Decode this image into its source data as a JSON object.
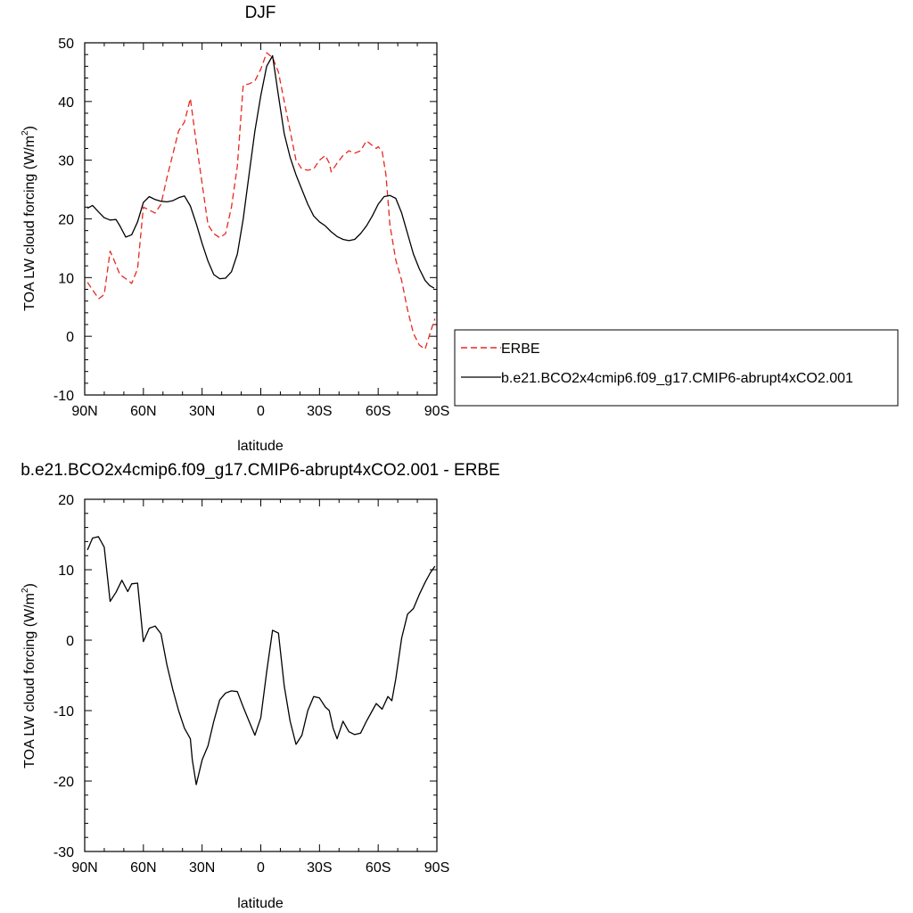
{
  "chart_data": [
    {
      "type": "line",
      "title": "DJF",
      "xlabel": "latitude",
      "ylabel": "TOA LW cloud forcing (W/m",
      "ylabel_sup": "2",
      "ylabel_close": ")",
      "xlim": [
        90,
        -90
      ],
      "ylim": [
        -10,
        50
      ],
      "xticks": [
        90,
        60,
        30,
        0,
        -30,
        -60,
        -90
      ],
      "xtick_labels": [
        "90N",
        "60N",
        "30N",
        "0",
        "30S",
        "60S",
        "90S"
      ],
      "yticks": [
        -10,
        0,
        10,
        20,
        30,
        40,
        50
      ],
      "ytick_labels": [
        "-10",
        "0",
        "10",
        "20",
        "30",
        "40",
        "50"
      ],
      "legend_position": "right",
      "series": [
        {
          "name": "ERBE",
          "color": "#e8281e",
          "dash": "dashed",
          "x": [
            88.6,
            86.0,
            82.8,
            80.0,
            77.0,
            75.0,
            72.0,
            69.0,
            66.0,
            63.0,
            60.0,
            57.0,
            54.0,
            51.0,
            48.0,
            45.0,
            42.0,
            39.0,
            36.0,
            35.0,
            33.0,
            30.0,
            27.0,
            24.0,
            21.0,
            18.0,
            15.0,
            12.0,
            9.0,
            6.0,
            3.0,
            0.0,
            -3.0,
            -6.0,
            -9.0,
            -12.0,
            -15.0,
            -18.0,
            -21.0,
            -24.0,
            -27.0,
            -30.0,
            -33.0,
            -35.0,
            -36.0,
            -39.0,
            -42.0,
            -45.0,
            -48.0,
            -51.0,
            -54.0,
            -57.0,
            -59.0,
            -60.0,
            -62.0,
            -64.0,
            -66.0,
            -69.0,
            -72.0,
            -75.0,
            -78.0,
            -81.0,
            -84.0,
            -86.5,
            -89.0
          ],
          "y": [
            9.2,
            7.9,
            6.4,
            7.1,
            14.5,
            13.0,
            10.5,
            9.8,
            9.0,
            11.5,
            22.0,
            21.5,
            21.0,
            22.5,
            27.0,
            31.0,
            35.0,
            36.5,
            40.5,
            38.0,
            33.0,
            26.0,
            19.0,
            17.5,
            16.8,
            17.5,
            22.0,
            29.0,
            42.8,
            43.0,
            43.5,
            45.5,
            48.3,
            47.5,
            45.0,
            40.0,
            35.0,
            30.0,
            28.5,
            28.3,
            28.5,
            30.0,
            30.8,
            29.5,
            28.0,
            29.5,
            30.8,
            31.6,
            31.2,
            31.6,
            33.3,
            32.5,
            32.0,
            32.3,
            31.5,
            27.5,
            19.0,
            13.0,
            9.5,
            4.5,
            0.5,
            -1.5,
            -2.2,
            0.5,
            3.0
          ]
        },
        {
          "name": "b.e21.BCO2x4cmip6.f09_g17.CMIP6-abrupt4xCO2.001",
          "color": "#000000",
          "dash": "solid",
          "x": [
            88.6,
            86.0,
            83.0,
            80.0,
            77.0,
            74.0,
            72.0,
            69.0,
            66.0,
            63.0,
            60.0,
            57.0,
            54.0,
            51.0,
            48.0,
            45.0,
            42.0,
            39.0,
            36.0,
            33.0,
            30.0,
            27.0,
            24.0,
            21.0,
            18.0,
            15.0,
            12.0,
            9.0,
            6.0,
            3.0,
            0.0,
            -3.0,
            -6.0,
            -9.0,
            -12.0,
            -15.0,
            -18.0,
            -21.0,
            -24.0,
            -27.0,
            -30.0,
            -33.0,
            -36.0,
            -39.0,
            -42.0,
            -45.0,
            -48.0,
            -51.0,
            -54.0,
            -57.0,
            -60.0,
            -63.0,
            -66.0,
            -69.0,
            -72.0,
            -75.0,
            -78.0,
            -81.0,
            -84.0,
            -86.5,
            -88.6
          ],
          "y": [
            21.8,
            22.3,
            21.2,
            20.2,
            19.8,
            19.9,
            18.8,
            16.9,
            17.3,
            19.5,
            22.8,
            23.8,
            23.3,
            23.0,
            22.9,
            23.1,
            23.6,
            23.9,
            22.2,
            19.2,
            15.8,
            12.8,
            10.5,
            9.8,
            9.9,
            11.0,
            14.0,
            20.0,
            27.5,
            35.0,
            41.0,
            46.0,
            47.8,
            41.0,
            34.5,
            30.5,
            27.5,
            25.0,
            22.5,
            20.5,
            19.5,
            18.8,
            17.8,
            17.0,
            16.5,
            16.3,
            16.5,
            17.5,
            18.8,
            20.5,
            22.5,
            23.8,
            24.0,
            23.5,
            21.0,
            17.5,
            14.0,
            11.5,
            9.5,
            8.6,
            8.2
          ]
        }
      ]
    },
    {
      "type": "line",
      "title": "b.e21.BCO2x4cmip6.f09_g17.CMIP6-abrupt4xCO2.001 - ERBE",
      "xlabel": "latitude",
      "ylabel": "TOA LW cloud forcing (W/m",
      "ylabel_sup": "2",
      "ylabel_close": ")",
      "xlim": [
        90,
        -90
      ],
      "ylim": [
        -30,
        20
      ],
      "xticks": [
        90,
        60,
        30,
        0,
        -30,
        -60,
        -90
      ],
      "xtick_labels": [
        "90N",
        "60N",
        "30N",
        "0",
        "30S",
        "60S",
        "90S"
      ],
      "yticks": [
        -30,
        -20,
        -10,
        0,
        10,
        20
      ],
      "ytick_labels": [
        "-30",
        "-20",
        "-10",
        "0",
        "10",
        "20"
      ],
      "series": [
        {
          "color": "#000000",
          "dash": "solid",
          "x": [
            88.6,
            86.0,
            83.0,
            80.0,
            77.0,
            74.0,
            71.0,
            68.0,
            66.0,
            63.0,
            60.0,
            57.0,
            54.0,
            51.0,
            48.0,
            45.0,
            42.0,
            39.0,
            36.0,
            35.0,
            33.0,
            30.0,
            27.0,
            24.0,
            21.0,
            18.0,
            15.0,
            12.0,
            9.0,
            6.0,
            3.0,
            0.0,
            -3.0,
            -6.0,
            -9.0,
            -12.0,
            -15.0,
            -18.0,
            -21.0,
            -24.0,
            -27.0,
            -30.0,
            -33.0,
            -35.0,
            -37.0,
            -39.0,
            -42.0,
            -45.0,
            -48.0,
            -51.0,
            -54.0,
            -57.0,
            -59.0,
            -62.0,
            -65.0,
            -67.0,
            -69.0,
            -72.0,
            -75.0,
            -78.0,
            -81.0,
            -84.0,
            -86.5,
            -89.0
          ],
          "y": [
            12.8,
            14.5,
            14.7,
            13.2,
            5.5,
            6.8,
            8.5,
            6.9,
            8.0,
            8.1,
            -0.2,
            1.7,
            2.0,
            0.9,
            -3.5,
            -7.0,
            -10.0,
            -12.5,
            -14.0,
            -17.0,
            -20.5,
            -17.0,
            -15.0,
            -11.5,
            -8.5,
            -7.5,
            -7.2,
            -7.3,
            -9.5,
            -11.5,
            -13.5,
            -11.0,
            -4.5,
            1.4,
            1.0,
            -6.5,
            -11.5,
            -14.8,
            -13.5,
            -10.0,
            -8.0,
            -8.2,
            -9.5,
            -10.0,
            -12.5,
            -14.0,
            -11.5,
            -13.0,
            -13.4,
            -13.2,
            -11.5,
            -10.0,
            -9.0,
            -9.8,
            -8.0,
            -8.6,
            -5.5,
            0.3,
            3.7,
            4.5,
            6.5,
            8.2,
            9.5,
            10.5
          ]
        }
      ]
    }
  ]
}
